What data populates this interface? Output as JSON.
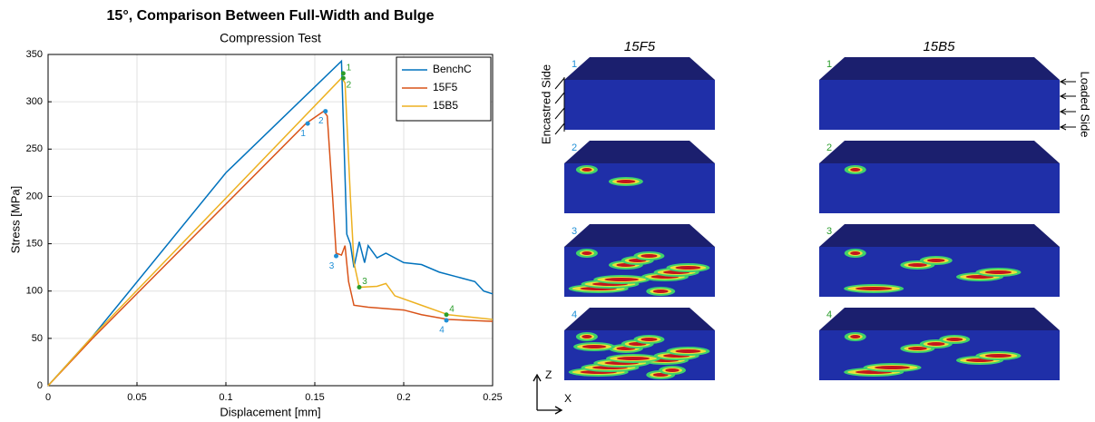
{
  "chart_data": {
    "type": "line",
    "title": "15°, Comparison Between Full-Width and Bulge",
    "subtitle": "Compression Test",
    "xlabel": "Displacement [mm]",
    "ylabel": "Stress [MPa]",
    "xlim": [
      0,
      0.25
    ],
    "ylim": [
      0,
      350
    ],
    "xticks": [
      0,
      0.05,
      0.1,
      0.15,
      0.2,
      0.25
    ],
    "yticks": [
      0,
      50,
      100,
      150,
      200,
      250,
      300,
      350
    ],
    "grid": true,
    "legend": "top-right",
    "series": [
      {
        "name": "BenchC",
        "color": "#0072BD",
        "x": [
          0,
          0.025,
          0.1,
          0.165,
          0.168,
          0.17,
          0.172,
          0.175,
          0.178,
          0.18,
          0.185,
          0.19,
          0.2,
          0.21,
          0.22,
          0.23,
          0.24,
          0.245,
          0.25
        ],
        "values": [
          0,
          52,
          225,
          343,
          160,
          150,
          125,
          152,
          130,
          148,
          135,
          140,
          130,
          128,
          120,
          115,
          110,
          100,
          97
        ]
      },
      {
        "name": "15F5",
        "color": "#D95319",
        "x": [
          0,
          0.025,
          0.145,
          0.155,
          0.157,
          0.16,
          0.162,
          0.165,
          0.167,
          0.169,
          0.172,
          0.18,
          0.2,
          0.21,
          0.225,
          0.25
        ],
        "values": [
          0,
          50,
          277,
          290,
          285,
          200,
          140,
          138,
          148,
          110,
          85,
          83,
          80,
          75,
          70,
          68
        ]
      },
      {
        "name": "15B5",
        "color": "#EDB120",
        "x": [
          0,
          0.025,
          0.165,
          0.167,
          0.17,
          0.172,
          0.175,
          0.185,
          0.19,
          0.195,
          0.21,
          0.225,
          0.25
        ],
        "values": [
          0,
          52,
          325,
          320,
          200,
          130,
          104,
          105,
          108,
          95,
          85,
          75,
          70
        ]
      }
    ],
    "markers": [
      {
        "label": "1",
        "x": 0.146,
        "y": 277,
        "color": "#1f8fd6"
      },
      {
        "label": "2",
        "x": 0.156,
        "y": 290,
        "color": "#1f8fd6"
      },
      {
        "label": "3",
        "x": 0.162,
        "y": 137,
        "color": "#1f8fd6"
      },
      {
        "label": "4",
        "x": 0.224,
        "y": 69,
        "color": "#1f8fd6"
      },
      {
        "label": "1",
        "x": 0.166,
        "y": 330,
        "color": "#2a9d2a"
      },
      {
        "label": "2",
        "x": 0.166,
        "y": 325,
        "color": "#2a9d2a"
      },
      {
        "label": "3",
        "x": 0.175,
        "y": 104,
        "color": "#2a9d2a"
      },
      {
        "label": "4",
        "x": 0.224,
        "y": 75,
        "color": "#2a9d2a"
      }
    ]
  },
  "panels": {
    "columns": [
      "15F5",
      "15B5"
    ],
    "left_labels": [
      "1",
      "2",
      "3",
      "4"
    ],
    "right_labels": [
      "1",
      "2",
      "3",
      "4"
    ],
    "encastred": "Encastred Side",
    "loaded": "Loaded Side",
    "axis_z": "Z",
    "axis_x": "X"
  }
}
